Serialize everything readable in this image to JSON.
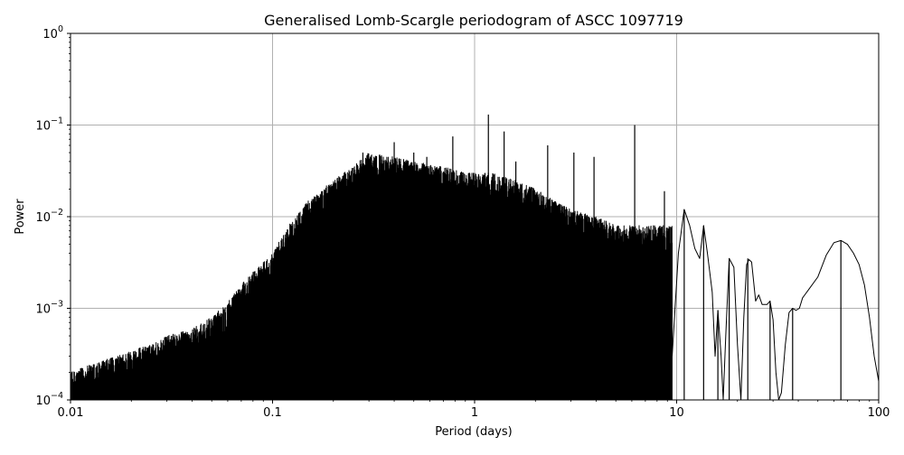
{
  "chart_data": {
    "type": "line",
    "title": "Generalised Lomb-Scargle periodogram of ASCC 1097719",
    "xlabel": "Period (days)",
    "ylabel": "Power",
    "xscale": "log",
    "yscale": "log",
    "xlim": [
      0.01,
      100
    ],
    "ylim": [
      0.0001,
      1
    ],
    "grid": true,
    "x_ticks": [
      {
        "value": 0.01,
        "label": "0.01"
      },
      {
        "value": 0.1,
        "label": "0.1"
      },
      {
        "value": 1,
        "label": "1"
      },
      {
        "value": 10,
        "label": "10"
      },
      {
        "value": 100,
        "label": "100"
      }
    ],
    "y_ticks": [
      {
        "value": 0.0001,
        "base": "10",
        "exp": "−4"
      },
      {
        "value": 0.001,
        "base": "10",
        "exp": "−3"
      },
      {
        "value": 0.01,
        "base": "10",
        "exp": "−2"
      },
      {
        "value": 0.1,
        "base": "10",
        "exp": "−1"
      },
      {
        "value": 1,
        "base": "10",
        "exp": "0"
      }
    ],
    "series": [
      {
        "color": "#000000",
        "envelope": {
          "x": [
            0.01,
            0.013,
            0.017,
            0.02,
            0.025,
            0.03,
            0.04,
            0.05,
            0.06,
            0.07,
            0.08,
            0.1,
            0.12,
            0.15,
            0.2,
            0.25,
            0.3,
            0.4,
            0.5,
            0.7,
            0.9,
            1.2,
            1.6,
            2,
            2.5,
            3,
            4,
            5
          ],
          "y": [
            0.0002,
            0.00025,
            0.0003,
            0.00035,
            0.0004,
            0.0005,
            0.0006,
            0.0008,
            0.0012,
            0.0018,
            0.0025,
            0.004,
            0.008,
            0.015,
            0.025,
            0.035,
            0.05,
            0.045,
            0.04,
            0.035,
            0.03,
            0.03,
            0.025,
            0.02,
            0.015,
            0.012,
            0.01,
            0.008
          ]
        },
        "peaks": [
          {
            "x": 0.28,
            "y": 0.05
          },
          {
            "x": 0.4,
            "y": 0.065
          },
          {
            "x": 0.5,
            "y": 0.05
          },
          {
            "x": 0.58,
            "y": 0.045
          },
          {
            "x": 0.78,
            "y": 0.075
          },
          {
            "x": 1.0,
            "y": 0.03
          },
          {
            "x": 1.17,
            "y": 0.13
          },
          {
            "x": 1.4,
            "y": 0.085
          },
          {
            "x": 1.6,
            "y": 0.04
          },
          {
            "x": 2.3,
            "y": 0.06
          },
          {
            "x": 3.1,
            "y": 0.05
          },
          {
            "x": 3.9,
            "y": 0.045
          },
          {
            "x": 6.2,
            "y": 0.1
          },
          {
            "x": 8.7,
            "y": 0.019
          },
          {
            "x": 10.9,
            "y": 0.012
          },
          {
            "x": 13.6,
            "y": 0.008
          },
          {
            "x": 16,
            "y": 0.00095
          },
          {
            "x": 18.2,
            "y": 0.0035
          },
          {
            "x": 22.5,
            "y": 0.0035
          },
          {
            "x": 29,
            "y": 0.0012
          },
          {
            "x": 37.5,
            "y": 0.001
          },
          {
            "x": 65,
            "y": 0.0055
          }
        ],
        "tail": {
          "x": [
            9.5,
            10.2,
            10.9,
            11.6,
            12.3,
            13,
            13.6,
            14.2,
            15,
            15.5,
            16,
            16.6,
            17,
            17.5,
            18.2,
            19.2,
            20,
            20.8,
            21.5,
            22.2,
            22.8,
            23.5,
            24.6,
            25.5,
            26.5,
            28,
            29,
            30,
            31,
            32,
            33,
            34.5,
            36,
            37.5,
            39,
            40.5,
            42,
            45,
            50,
            55,
            60,
            65,
            70,
            75,
            80,
            85,
            90,
            95,
            100
          ],
          "y": [
            0.0003,
            0.004,
            0.012,
            0.008,
            0.0045,
            0.0035,
            0.008,
            0.004,
            0.0015,
            0.0003,
            0.00095,
            0.0003,
            0.0001,
            0.0005,
            0.0035,
            0.0028,
            0.0004,
            0.0001,
            0.0008,
            0.003,
            0.0034,
            0.0032,
            0.0012,
            0.0014,
            0.0011,
            0.0011,
            0.0012,
            0.00075,
            0.0002,
            0.0001,
            0.00012,
            0.0004,
            0.0009,
            0.001,
            0.00095,
            0.001,
            0.0013,
            0.0016,
            0.0022,
            0.0038,
            0.0052,
            0.0055,
            0.005,
            0.004,
            0.003,
            0.0018,
            0.0008,
            0.0003,
            0.00016
          ]
        }
      }
    ]
  }
}
